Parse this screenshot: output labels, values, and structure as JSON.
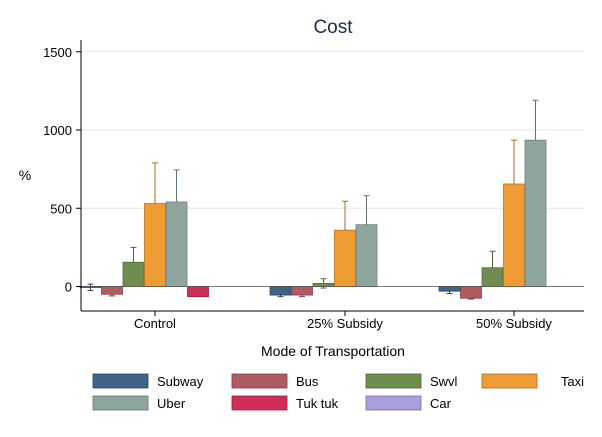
{
  "chart_data": {
    "type": "bar",
    "title": "Cost",
    "xlabel": "Mode of Transportation",
    "ylabel": "%",
    "ylim": [
      -100,
      1550
    ],
    "yticks": [
      0,
      500,
      1000,
      1500
    ],
    "grid": true,
    "legend_position": "bottom",
    "categories": [
      "Control",
      "25% Subsidy",
      "50% Subsidy"
    ],
    "series": [
      {
        "name": "Subway",
        "color": "#3e6488",
        "values": [
          -5,
          -55,
          -30
        ],
        "ci_low": [
          -25,
          -65,
          -45
        ],
        "ci_high": [
          15,
          -45,
          -15
        ]
      },
      {
        "name": "Bus",
        "color": "#b05a62",
        "values": [
          -50,
          -55,
          -75
        ],
        "ci_low": [
          -60,
          -65,
          -80
        ],
        "ci_high": [
          -40,
          -45,
          -70
        ]
      },
      {
        "name": "Swvl",
        "color": "#6f8d4f",
        "values": [
          155,
          20,
          120
        ],
        "ci_low": [
          60,
          -10,
          20
        ],
        "ci_high": [
          250,
          50,
          225
        ]
      },
      {
        "name": "Taxi",
        "color": "#f09c35",
        "values": [
          530,
          360,
          655
        ],
        "ci_low": [
          270,
          165,
          370
        ],
        "ci_high": [
          790,
          545,
          935
        ]
      },
      {
        "name": "Uber",
        "color": "#8ea69e",
        "values": [
          540,
          395,
          935
        ],
        "ci_low": [
          330,
          210,
          685
        ],
        "ci_high": [
          745,
          580,
          1190
        ]
      },
      {
        "name": "Tuk tuk",
        "color": "#d12e57",
        "values": [
          -65,
          null,
          null
        ],
        "ci_low": [
          null,
          null,
          null
        ],
        "ci_high": [
          null,
          null,
          null
        ]
      },
      {
        "name": "Car",
        "color": "#a99fdc",
        "values": [
          null,
          null,
          null
        ],
        "ci_low": [
          null,
          null,
          null
        ],
        "ci_high": [
          null,
          null,
          null
        ]
      }
    ]
  }
}
